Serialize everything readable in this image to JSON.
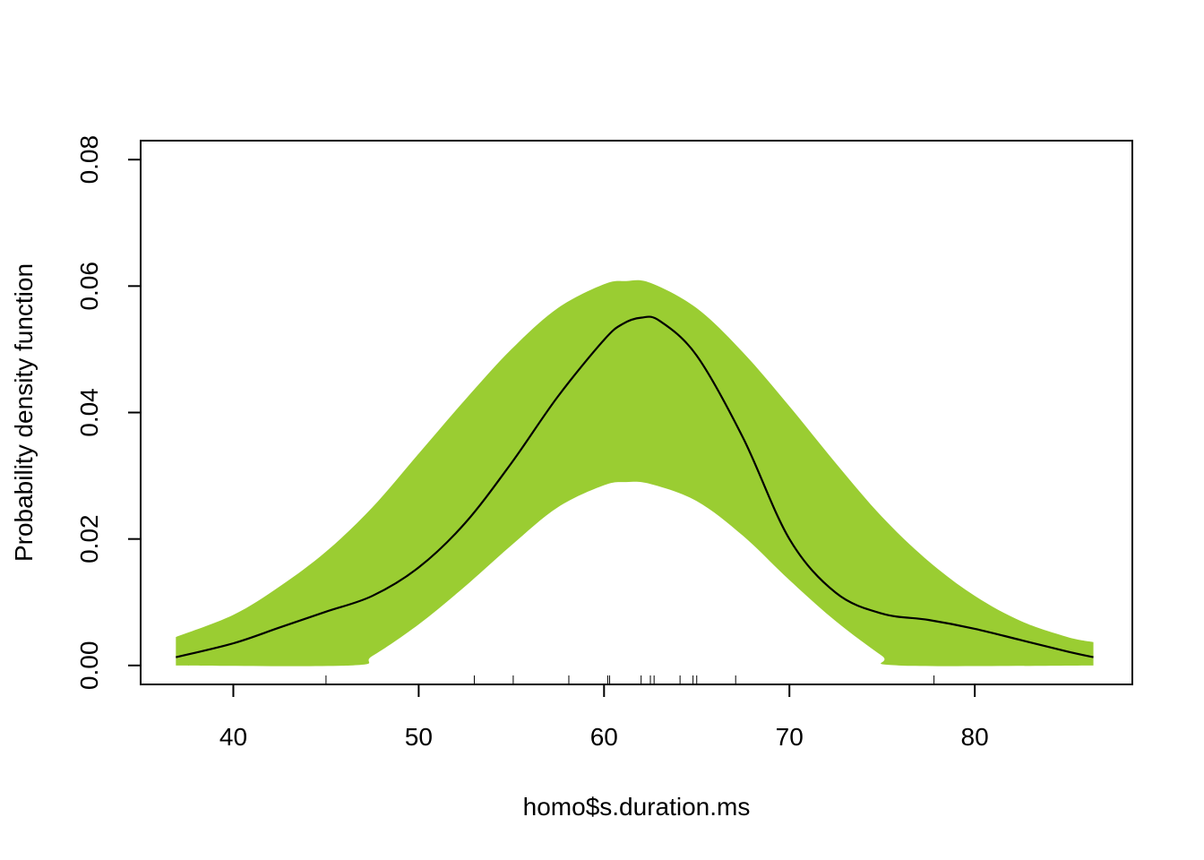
{
  "chart_data": {
    "type": "area",
    "title": "",
    "xlabel": "homo$s.duration.ms",
    "ylabel": "Probability density function",
    "xlim": [
      35,
      88.5
    ],
    "ylim": [
      -0.003,
      0.083
    ],
    "x_ticks": [
      40,
      50,
      60,
      70,
      80
    ],
    "x_tick_labels": [
      "40",
      "50",
      "60",
      "70",
      "80"
    ],
    "y_ticks": [
      0.0,
      0.02,
      0.04,
      0.06,
      0.08
    ],
    "y_tick_labels": [
      "0.00",
      "0.02",
      "0.04",
      "0.06",
      "0.08"
    ],
    "grid": false,
    "band_color": "#9ACD32",
    "line_color": "#000000",
    "series": [
      {
        "role": "density",
        "x": [
          36.9,
          40,
          42.5,
          45,
          47.5,
          50,
          52.5,
          55,
          57.5,
          60,
          61,
          62,
          63,
          65,
          67.5,
          70,
          72.5,
          75,
          77.5,
          80,
          82.5,
          85,
          86.4
        ],
        "y": [
          0.0013,
          0.0035,
          0.006,
          0.0085,
          0.011,
          0.0155,
          0.0225,
          0.032,
          0.0425,
          0.0515,
          0.054,
          0.055,
          0.0545,
          0.049,
          0.036,
          0.02,
          0.0115,
          0.0082,
          0.0072,
          0.0058,
          0.004,
          0.0022,
          0.0013
        ]
      },
      {
        "role": "band-upper",
        "x": [
          36.9,
          40,
          42.5,
          45,
          47.5,
          50,
          52.5,
          55,
          57.5,
          60,
          61.2,
          62.5,
          65,
          67.5,
          70,
          72.5,
          75,
          77.5,
          80,
          82.5,
          85,
          86.4
        ],
        "y": [
          0.0045,
          0.008,
          0.0125,
          0.018,
          0.025,
          0.0335,
          0.042,
          0.05,
          0.0565,
          0.0603,
          0.0608,
          0.0605,
          0.0565,
          0.0495,
          0.041,
          0.032,
          0.0235,
          0.0165,
          0.011,
          0.007,
          0.0045,
          0.0037
        ]
      },
      {
        "role": "band-lower",
        "x": [
          36.9,
          46.3,
          47.5,
          50,
          52.5,
          55,
          57.5,
          60,
          61.2,
          62.5,
          65,
          67.5,
          70,
          72.5,
          75,
          75.9,
          86.4
        ],
        "y": [
          0.0,
          0.0,
          0.0015,
          0.0065,
          0.0125,
          0.019,
          0.025,
          0.0285,
          0.029,
          0.0287,
          0.026,
          0.0205,
          0.0135,
          0.007,
          0.0015,
          0.0,
          0.0
        ]
      }
    ],
    "rug": [
      45,
      53,
      55.1,
      58.1,
      60.2,
      60.3,
      62,
      62.5,
      62.7,
      64.1,
      64.8,
      65,
      67.1,
      77.8
    ]
  }
}
